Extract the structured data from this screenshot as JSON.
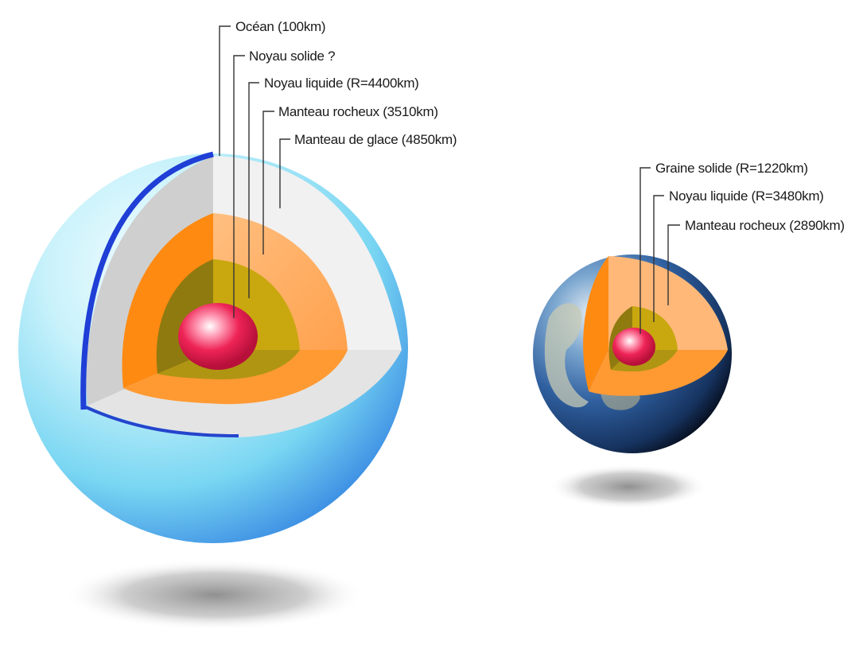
{
  "big_body": {
    "labels": [
      {
        "key": "ocean",
        "text": "Océan (100km)"
      },
      {
        "key": "solid_core",
        "text": "Noyau solide ?"
      },
      {
        "key": "liquid_core",
        "text": "Noyau liquide (R=4400km)"
      },
      {
        "key": "rock_mantle",
        "text": "Manteau rocheux (3510km)"
      },
      {
        "key": "ice_mantle",
        "text": "Manteau de glace (4850km)"
      }
    ]
  },
  "earth": {
    "labels": [
      {
        "key": "inner_core",
        "text": "Graine solide (R=1220km)"
      },
      {
        "key": "outer_core",
        "text": "Noyau liquide (R=3480km)"
      },
      {
        "key": "mantle",
        "text": "Manteau rocheux (2890km)"
      }
    ]
  },
  "colors": {
    "ice_shell": "#7fd6f0",
    "ocean_blue": "#1f3fd6",
    "ice_mantle": "#e9e9e9",
    "rock_mantle": "#ff8c1a",
    "rock_mantle_light": "#ffb877",
    "liquid_core": "#a8950f",
    "solid_core": "#e8194f",
    "earth_blue": "#2d5fa8"
  }
}
